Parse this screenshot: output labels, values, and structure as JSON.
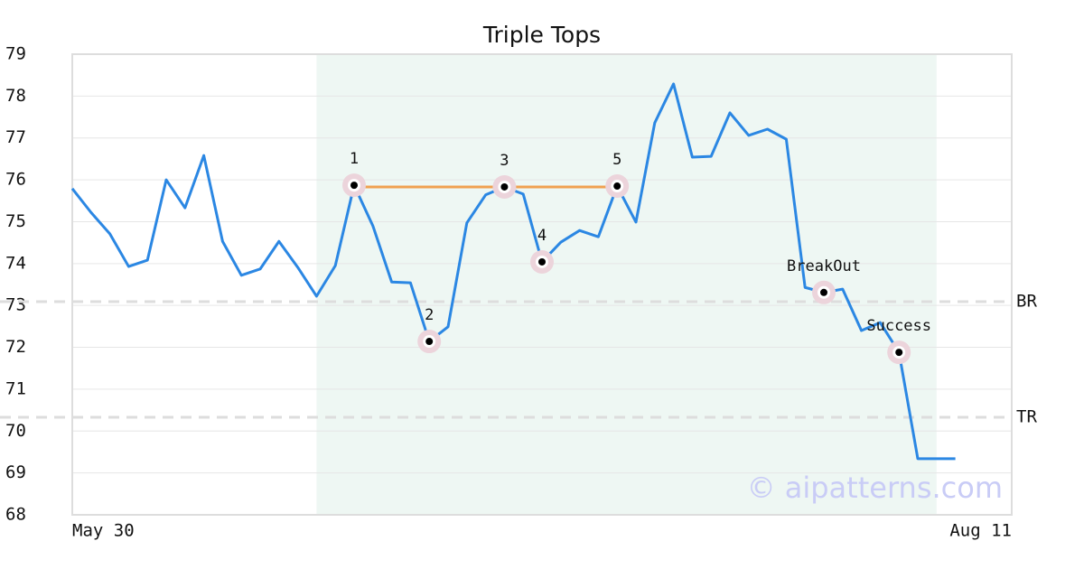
{
  "chart_data": {
    "type": "line",
    "title": "Triple Tops",
    "categories": [
      "May 30",
      null,
      null,
      null,
      null,
      null,
      null,
      null,
      null,
      null,
      null,
      null,
      null,
      null,
      null,
      null,
      null,
      null,
      null,
      null,
      null,
      null,
      null,
      null,
      null,
      null,
      null,
      null,
      null,
      null,
      null,
      null,
      null,
      null,
      null,
      null,
      null,
      null,
      null,
      null,
      null,
      null,
      null,
      null,
      null,
      null,
      null,
      "Aug 11"
    ],
    "series": [
      {
        "color": "#2b87e3",
        "values": [
          75.79,
          75.22,
          74.71,
          73.93,
          74.08,
          76.0,
          75.33,
          76.58,
          74.53,
          73.72,
          73.87,
          74.53,
          73.91,
          73.22,
          73.95,
          75.87,
          74.9,
          73.56,
          73.54,
          72.14,
          72.49,
          74.97,
          75.64,
          75.83,
          75.66,
          74.04,
          74.51,
          74.79,
          74.64,
          75.85,
          74.99,
          77.36,
          78.29,
          76.54,
          76.56,
          77.6,
          77.06,
          77.21,
          76.97,
          73.43,
          73.31,
          73.39,
          72.4,
          72.59,
          71.88,
          69.34,
          69.34,
          69.34
        ]
      }
    ],
    "ylim": [
      68,
      79
    ],
    "yticks": [
      68,
      69,
      70,
      71,
      72,
      73,
      74,
      75,
      76,
      77,
      78,
      79
    ],
    "grid": true,
    "shaded_span": {
      "start": 13,
      "end": 46,
      "color": "#eef7f3"
    },
    "resistance": {
      "start": 15,
      "end": 29,
      "value": 75.83,
      "color": "#f0a050"
    },
    "reference_lines": [
      {
        "label": "BR",
        "value": 73.09
      },
      {
        "label": "TR",
        "value": 70.33
      }
    ],
    "annotations": [
      {
        "index": 15,
        "label": "1"
      },
      {
        "index": 19,
        "label": "2"
      },
      {
        "index": 23,
        "label": "3"
      },
      {
        "index": 25,
        "label": "4"
      },
      {
        "index": 29,
        "label": "5"
      },
      {
        "index": 40,
        "label": "BreakOut"
      },
      {
        "index": 44,
        "label": "Success"
      }
    ],
    "watermark": "© aipatterns.com"
  }
}
